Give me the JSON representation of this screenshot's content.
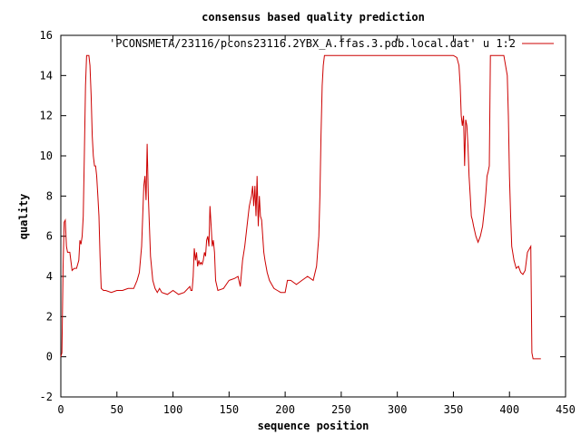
{
  "chart_data": {
    "type": "line",
    "title": "consensus based quality prediction",
    "xlabel": "sequence position",
    "ylabel": "quality",
    "xlim": [
      0,
      450
    ],
    "ylim": [
      -2,
      16
    ],
    "xticks": [
      0,
      50,
      100,
      150,
      200,
      250,
      300,
      350,
      400,
      450
    ],
    "yticks": [
      -2,
      0,
      2,
      4,
      6,
      8,
      10,
      12,
      14,
      16
    ],
    "grid": false,
    "legend_position": "top-right",
    "line_color": "#cc0000",
    "series": [
      {
        "name": "'PCONSMETA/23116/pcons23116.2YBX_A.ffas.3.pdb.local.dat' u 1:2",
        "x": [
          0,
          1,
          2,
          3,
          4,
          5,
          6,
          7,
          8,
          10,
          12,
          14,
          16,
          17,
          18,
          19,
          20,
          21,
          22,
          23,
          24,
          25,
          26,
          27,
          28,
          29,
          30,
          31,
          32,
          33,
          34,
          35,
          36,
          38,
          40,
          45,
          50,
          55,
          60,
          65,
          68,
          70,
          72,
          73,
          74,
          75,
          76,
          77,
          78,
          79,
          80,
          82,
          84,
          86,
          88,
          90,
          95,
          100,
          105,
          110,
          115,
          116,
          117,
          118,
          119,
          120,
          121,
          122,
          123,
          124,
          125,
          126,
          127,
          128,
          129,
          130,
          131,
          132,
          133,
          134,
          135,
          136,
          137,
          138,
          140,
          145,
          150,
          155,
          158,
          160,
          162,
          164,
          166,
          168,
          170,
          171,
          172,
          173,
          174,
          175,
          176,
          177,
          178,
          179,
          180,
          181,
          182,
          184,
          186,
          188,
          190,
          193,
          196,
          200,
          202,
          205,
          210,
          215,
          220,
          225,
          228,
          230,
          231,
          232,
          233,
          234,
          235,
          240,
          250,
          300,
          350,
          353,
          355,
          356,
          357,
          358,
          359,
          360,
          361,
          362,
          363,
          364,
          365,
          366,
          367,
          368,
          370,
          372,
          374,
          376,
          378,
          379,
          380,
          381,
          382,
          383,
          384,
          385,
          395,
          398,
          399,
          400,
          401,
          402,
          404,
          406,
          408,
          410,
          412,
          414,
          416,
          418,
          419,
          420,
          421,
          428
        ],
        "y": [
          0,
          0.2,
          4.5,
          6.7,
          6.8,
          5.5,
          5.2,
          5.2,
          5.2,
          4.3,
          4.4,
          4.4,
          4.8,
          5.8,
          5.6,
          6.0,
          7.0,
          10.0,
          13.5,
          15.0,
          15.0,
          15.0,
          14.5,
          13.0,
          11.0,
          10.0,
          9.5,
          9.5,
          9.0,
          8.0,
          7.0,
          5.0,
          3.4,
          3.3,
          3.3,
          3.2,
          3.3,
          3.3,
          3.4,
          3.4,
          3.8,
          4.2,
          5.5,
          7.0,
          8.5,
          9.0,
          7.8,
          10.6,
          8.0,
          6.5,
          5.0,
          3.8,
          3.4,
          3.2,
          3.4,
          3.2,
          3.1,
          3.3,
          3.1,
          3.2,
          3.5,
          3.3,
          3.3,
          4.0,
          5.4,
          4.8,
          5.2,
          4.5,
          4.8,
          4.6,
          4.7,
          4.6,
          4.8,
          5.2,
          5.0,
          5.8,
          6.0,
          5.5,
          7.5,
          6.5,
          5.5,
          5.8,
          5.2,
          3.8,
          3.3,
          3.4,
          3.8,
          3.9,
          4.0,
          3.5,
          4.8,
          5.5,
          6.5,
          7.5,
          8.0,
          8.5,
          7.5,
          8.5,
          7.0,
          9.0,
          6.5,
          8.0,
          7.0,
          6.8,
          6.0,
          5.2,
          4.8,
          4.2,
          3.8,
          3.6,
          3.4,
          3.3,
          3.2,
          3.2,
          3.8,
          3.8,
          3.6,
          3.8,
          4.0,
          3.8,
          4.5,
          6.0,
          8.0,
          11.0,
          13.5,
          14.5,
          15.0,
          15.0,
          15.0,
          15.0,
          15.0,
          14.9,
          14.5,
          13.5,
          12.0,
          11.5,
          12.0,
          9.5,
          11.8,
          11.5,
          10.5,
          9.0,
          8.0,
          7.0,
          6.8,
          6.5,
          6.0,
          5.7,
          6.0,
          6.5,
          7.5,
          8.2,
          9.0,
          9.2,
          9.5,
          15.0,
          15.0,
          15.0,
          15.0,
          14.0,
          12.0,
          9.0,
          7.0,
          5.5,
          4.8,
          4.4,
          4.5,
          4.2,
          4.1,
          4.3,
          5.2,
          5.4,
          5.5,
          0.2,
          -0.1,
          -0.1
        ]
      }
    ]
  }
}
